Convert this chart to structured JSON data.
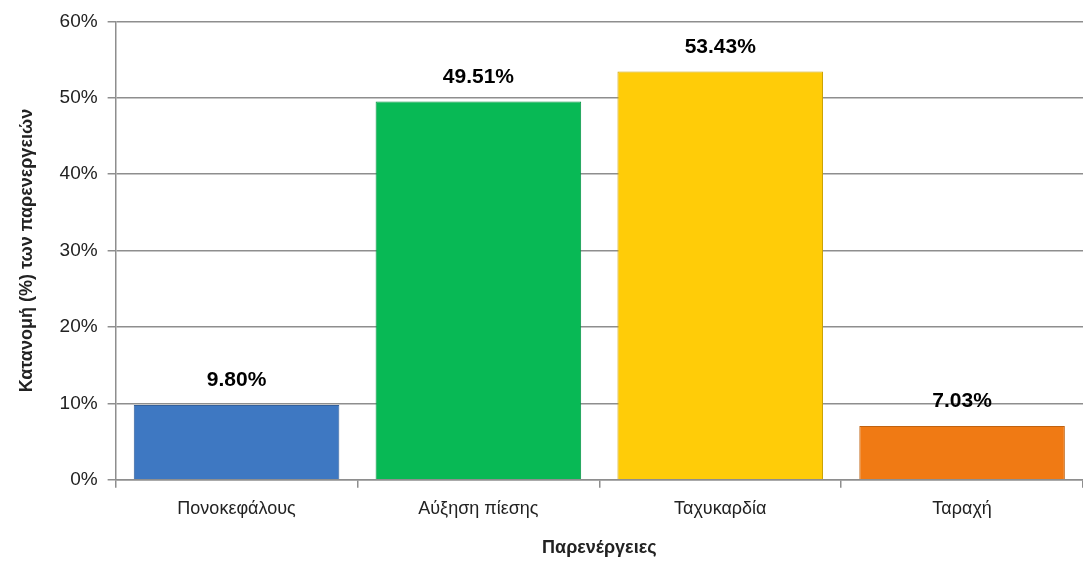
{
  "chart_data": {
    "type": "bar",
    "xlabel": "Παρενέργειες",
    "ylabel": "Κατανομή (%) των παρενεργειών",
    "categories": [
      "Πονοκεφάλους",
      "Αύξηση πίεσης",
      "Ταχυκαρδία",
      "Ταραχή"
    ],
    "values": [
      9.8,
      49.51,
      53.43,
      7.03
    ],
    "value_labels": [
      "9.80%",
      "49.51%",
      "53.43%",
      "7.03%"
    ],
    "colors": [
      "#3e78c2",
      "#08b955",
      "#ffcc08",
      "#f07a14"
    ],
    "ylim": [
      0,
      60
    ],
    "yticks": [
      {
        "value": 0,
        "label": "0%"
      },
      {
        "value": 10,
        "label": "10%"
      },
      {
        "value": 20,
        "label": "20%"
      },
      {
        "value": 30,
        "label": "30%"
      },
      {
        "value": 40,
        "label": "40%"
      },
      {
        "value": 50,
        "label": "50%"
      },
      {
        "value": 60,
        "label": "60%"
      }
    ],
    "grid": "y"
  }
}
